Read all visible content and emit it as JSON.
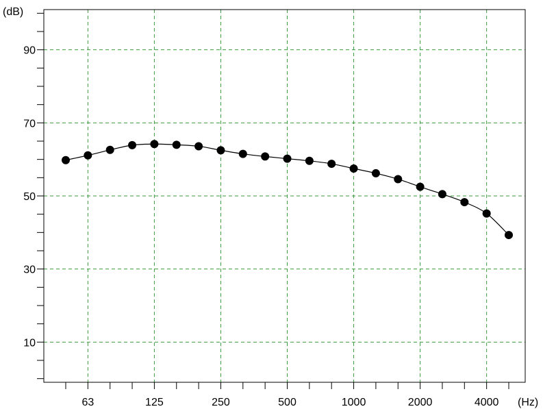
{
  "chart_data": {
    "type": "line",
    "title": "",
    "xlabel": "",
    "ylabel": "",
    "x_unit": "(Hz)",
    "y_unit": "(dB)",
    "x_scale": "log",
    "x": [
      50,
      63,
      80,
      100,
      125,
      160,
      200,
      250,
      315,
      400,
      500,
      630,
      800,
      1000,
      1250,
      1600,
      2000,
      2500,
      3150,
      4000,
      5000
    ],
    "x_tick_labels": [
      {
        "value": 63,
        "label": "63"
      },
      {
        "value": 125,
        "label": "125"
      },
      {
        "value": 250,
        "label": "250"
      },
      {
        "value": 500,
        "label": "500"
      },
      {
        "value": 1000,
        "label": "1000"
      },
      {
        "value": 2000,
        "label": "2000"
      },
      {
        "value": 4000,
        "label": "4000"
      }
    ],
    "y_ticks": [
      10,
      30,
      50,
      70,
      90
    ],
    "ylim": [
      -1,
      101
    ],
    "grid": true,
    "series": [
      {
        "values": [
          59.8,
          61.1,
          62.6,
          63.9,
          64.2,
          64.0,
          63.6,
          62.5,
          61.5,
          60.8,
          60.2,
          59.6,
          58.8,
          57.5,
          56.2,
          54.6,
          52.5,
          50.5,
          48.3,
          45.2,
          39.3
        ]
      }
    ],
    "colors": {
      "grid": "#3a9a3a",
      "line": "#000000",
      "marker": "#000000"
    }
  }
}
